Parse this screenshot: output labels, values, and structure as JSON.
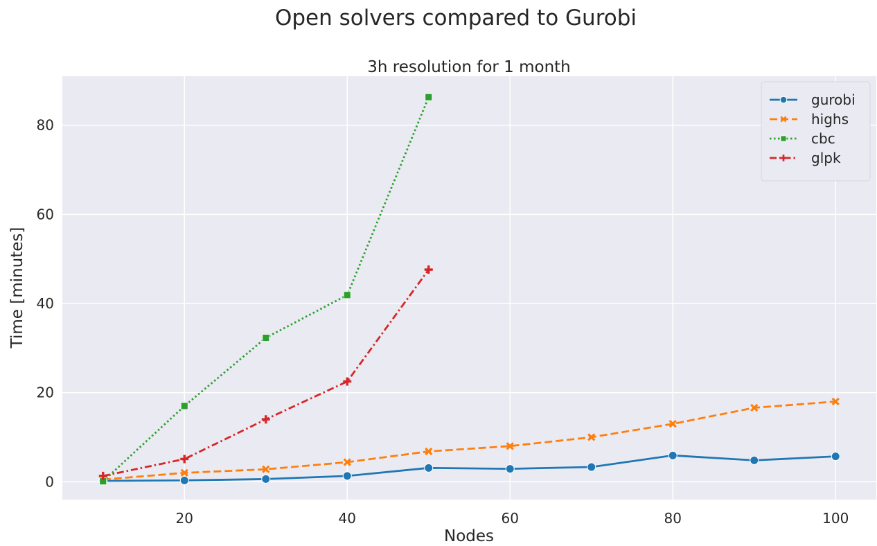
{
  "suptitle": "Open solvers compared to Gurobi",
  "chart_data": {
    "type": "line",
    "title": "3h resolution for 1 month",
    "xlabel": "Nodes",
    "ylabel": "Time [minutes]",
    "xlim": [
      5,
      105
    ],
    "ylim": [
      -4,
      91
    ],
    "xticks": [
      20,
      40,
      60,
      80,
      100
    ],
    "yticks": [
      0,
      20,
      40,
      60,
      80
    ],
    "grid": true,
    "legend_position": "upper right",
    "series": [
      {
        "name": "gurobi",
        "color": "#1f77b4",
        "linestyle": "solid",
        "marker": "circle",
        "x": [
          10,
          20,
          30,
          40,
          50,
          60,
          70,
          80,
          90,
          100
        ],
        "y": [
          0.2,
          0.3,
          0.6,
          1.3,
          3.1,
          2.9,
          3.3,
          5.9,
          4.8,
          5.7
        ]
      },
      {
        "name": "highs",
        "color": "#ff7f0e",
        "linestyle": "dashed",
        "marker": "x",
        "x": [
          10,
          20,
          30,
          40,
          50,
          60,
          70,
          80,
          90,
          100
        ],
        "y": [
          0.5,
          2.0,
          2.8,
          4.4,
          6.8,
          8.0,
          10.0,
          13.0,
          16.6,
          18.0
        ]
      },
      {
        "name": "cbc",
        "color": "#2ca02c",
        "linestyle": "dotted",
        "marker": "square",
        "x": [
          10,
          20,
          30,
          40,
          50
        ],
        "y": [
          0.1,
          17.0,
          32.3,
          41.9,
          86.3
        ]
      },
      {
        "name": "glpk",
        "color": "#d62728",
        "linestyle": "dashdot",
        "marker": "plus",
        "x": [
          10,
          20,
          30,
          40,
          50
        ],
        "y": [
          1.3,
          5.1,
          14.0,
          22.5,
          47.6
        ]
      }
    ]
  }
}
